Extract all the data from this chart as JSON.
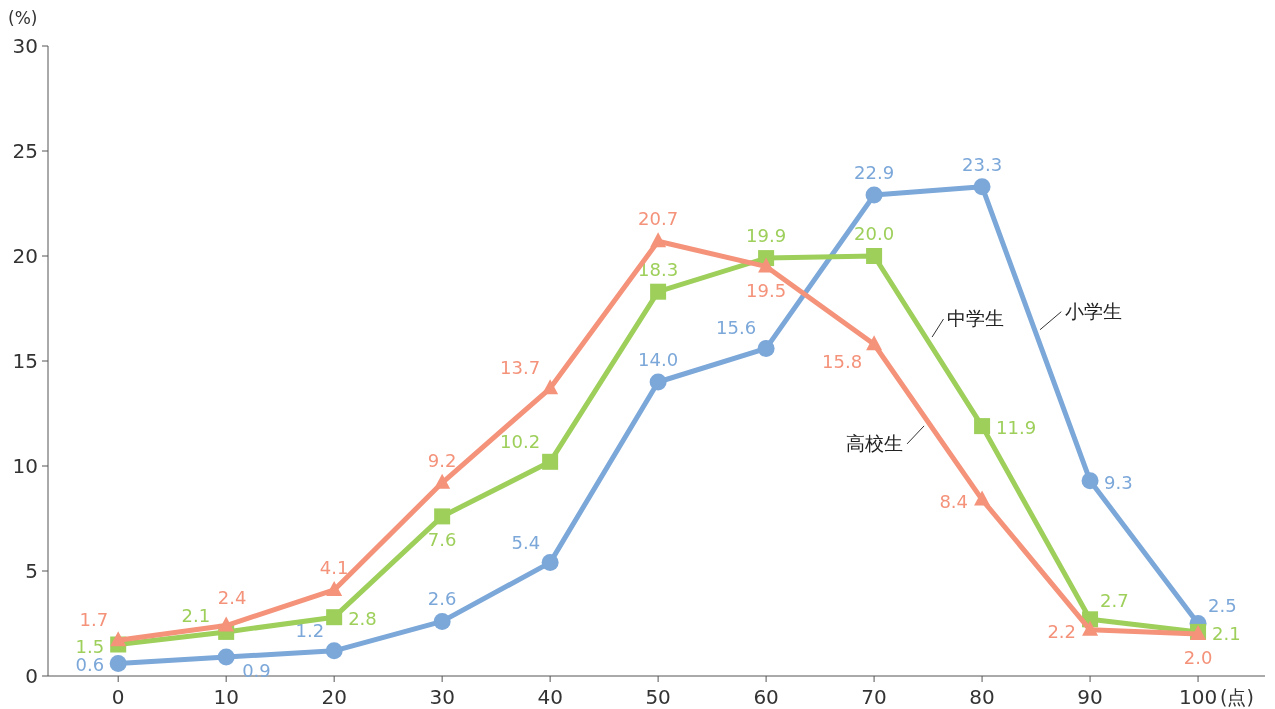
{
  "chart_data": {
    "type": "line",
    "ylabel": "(%)",
    "xlabel": "(点)",
    "x": [
      0,
      10,
      20,
      30,
      40,
      50,
      60,
      70,
      80,
      90,
      100
    ],
    "xlim": [
      -6.5,
      106.2
    ],
    "xticks": [
      0,
      10,
      20,
      30,
      40,
      50,
      60,
      70,
      80,
      90,
      100
    ],
    "ylim": [
      0,
      30
    ],
    "yticks": [
      0,
      5,
      10,
      15,
      20,
      25,
      30
    ],
    "grid": false,
    "legend": false,
    "line_style": "solid",
    "series": [
      {
        "name": "小学生",
        "color": "#7ba7d9",
        "marker": "circle",
        "values": [
          0.6,
          0.9,
          1.2,
          2.6,
          5.4,
          14.0,
          15.6,
          22.9,
          23.3,
          9.3,
          2.5
        ],
        "value_labels": [
          "0.6",
          "0.9",
          "1.2",
          "2.6",
          "5.4",
          "14.0",
          "15.6",
          "22.9",
          "23.3",
          "9.3",
          "2.5"
        ]
      },
      {
        "name": "中学生",
        "color": "#9dcf5a",
        "marker": "square",
        "values": [
          1.5,
          2.1,
          2.8,
          7.6,
          10.2,
          18.3,
          19.9,
          20.0,
          11.9,
          2.7,
          2.1
        ],
        "value_labels": [
          "1.5",
          "2.1",
          "2.8",
          "7.6",
          "10.2",
          "18.3",
          "19.9",
          "20.0",
          "11.9",
          "2.7",
          "2.1"
        ]
      },
      {
        "name": "高校生",
        "color": "#f4927a",
        "marker": "triangle",
        "values": [
          1.7,
          2.4,
          4.1,
          9.2,
          13.7,
          20.7,
          19.5,
          15.8,
          8.4,
          2.2,
          2.0
        ],
        "value_labels": [
          "1.7",
          "2.4",
          "4.1",
          "9.2",
          "13.7",
          "20.7",
          "19.5",
          "15.8",
          "8.4",
          "2.2",
          "2.0"
        ]
      }
    ]
  }
}
